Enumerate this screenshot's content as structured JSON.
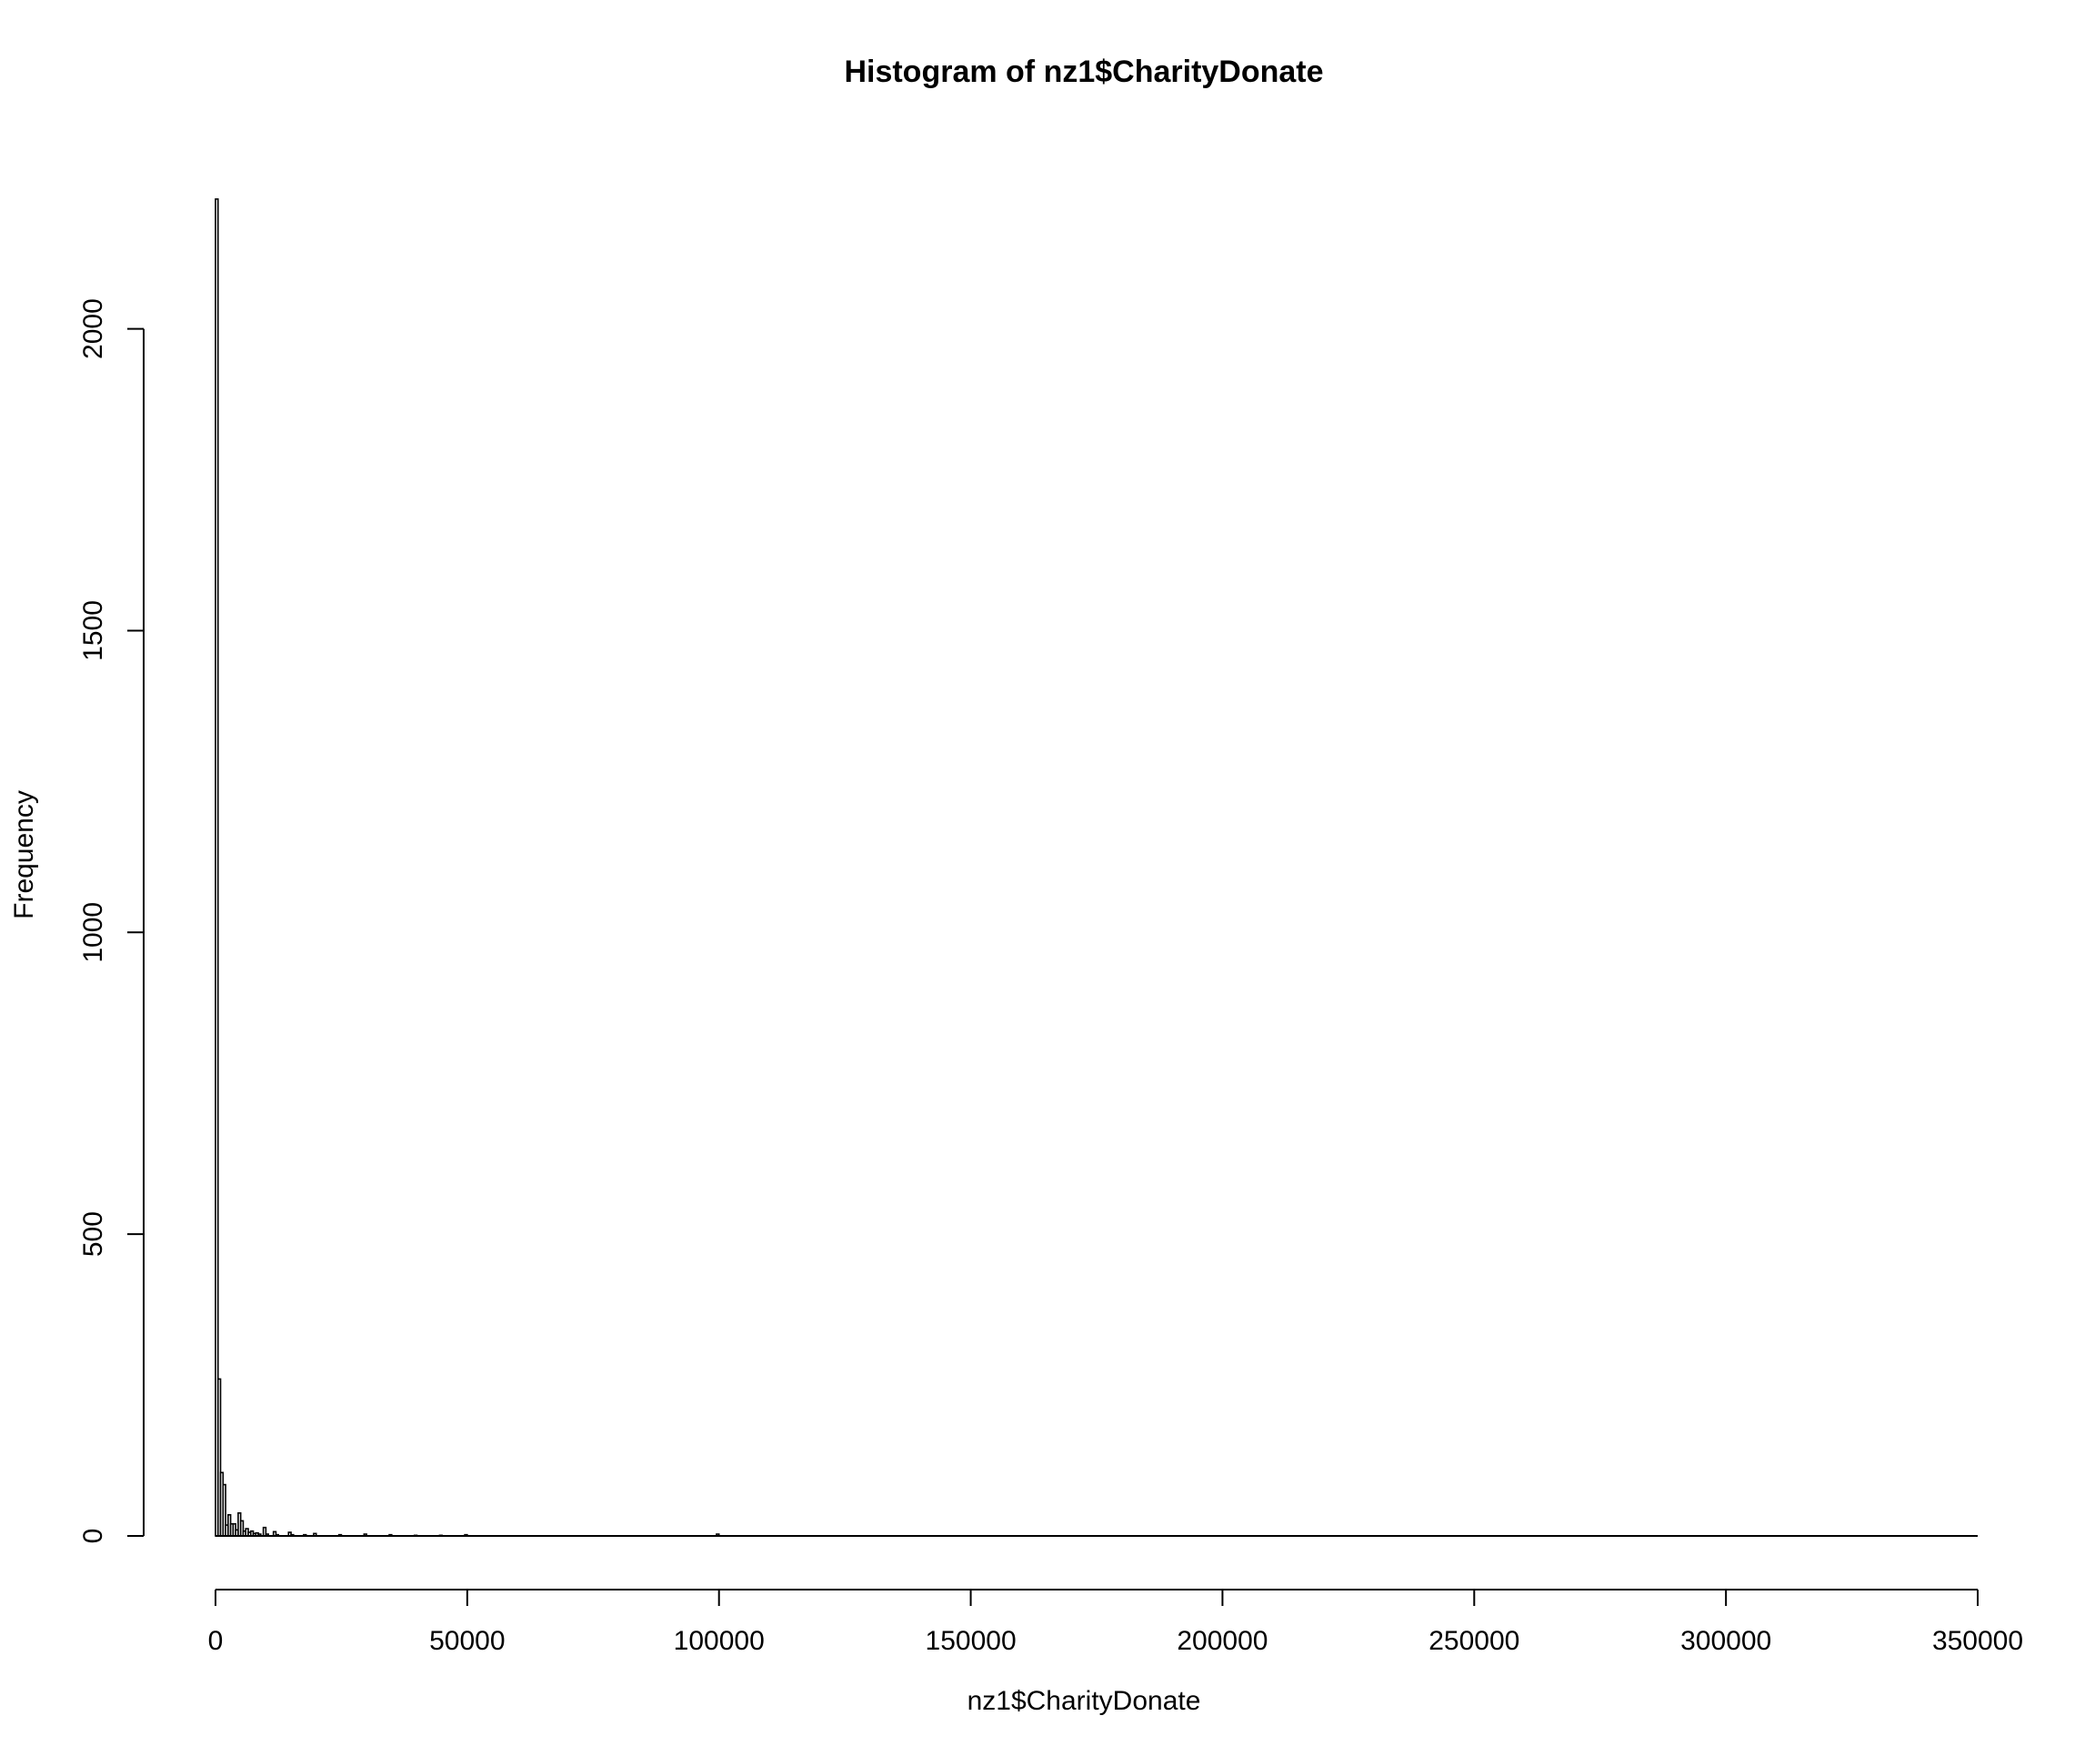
{
  "chart_data": {
    "type": "bar",
    "title": "Histogram of nz1$CharityDonate",
    "xlabel": "nz1$CharityDonate",
    "ylabel": "Frequency",
    "xlim": [
      0,
      350000
    ],
    "ylim": [
      0,
      2220
    ],
    "x_ticks": [
      "0",
      "50000",
      "100000",
      "150000",
      "200000",
      "250000",
      "300000",
      "350000"
    ],
    "y_ticks": [
      "0",
      "500",
      "1000",
      "1500",
      "2000"
    ],
    "bin_width": 500,
    "bins": [
      {
        "x0": 0,
        "x1": 500,
        "count": 2215
      },
      {
        "x0": 500,
        "x1": 1000,
        "count": 260
      },
      {
        "x0": 1000,
        "x1": 1500,
        "count": 105
      },
      {
        "x0": 1500,
        "x1": 2000,
        "count": 85
      },
      {
        "x0": 2000,
        "x1": 2500,
        "count": 18
      },
      {
        "x0": 2500,
        "x1": 3000,
        "count": 35
      },
      {
        "x0": 3000,
        "x1": 3500,
        "count": 20
      },
      {
        "x0": 3500,
        "x1": 4000,
        "count": 20
      },
      {
        "x0": 4000,
        "x1": 4500,
        "count": 10
      },
      {
        "x0": 4500,
        "x1": 5000,
        "count": 38
      },
      {
        "x0": 5000,
        "x1": 5500,
        "count": 25
      },
      {
        "x0": 5500,
        "x1": 6000,
        "count": 8
      },
      {
        "x0": 6000,
        "x1": 6500,
        "count": 12
      },
      {
        "x0": 6500,
        "x1": 7000,
        "count": 6
      },
      {
        "x0": 7000,
        "x1": 7500,
        "count": 8
      },
      {
        "x0": 7500,
        "x1": 8000,
        "count": 4
      },
      {
        "x0": 8000,
        "x1": 8500,
        "count": 5
      },
      {
        "x0": 8500,
        "x1": 9000,
        "count": 3
      },
      {
        "x0": 9500,
        "x1": 10000,
        "count": 14
      },
      {
        "x0": 10000,
        "x1": 10500,
        "count": 3
      },
      {
        "x0": 11500,
        "x1": 12000,
        "count": 7
      },
      {
        "x0": 12000,
        "x1": 12500,
        "count": 2
      },
      {
        "x0": 14500,
        "x1": 15000,
        "count": 6
      },
      {
        "x0": 15000,
        "x1": 15500,
        "count": 2
      },
      {
        "x0": 17500,
        "x1": 18000,
        "count": 2
      },
      {
        "x0": 19500,
        "x1": 20000,
        "count": 4
      },
      {
        "x0": 24500,
        "x1": 25000,
        "count": 2
      },
      {
        "x0": 29500,
        "x1": 30000,
        "count": 3
      },
      {
        "x0": 34500,
        "x1": 35000,
        "count": 2
      },
      {
        "x0": 39500,
        "x1": 40000,
        "count": 1
      },
      {
        "x0": 44500,
        "x1": 45000,
        "count": 1
      },
      {
        "x0": 49500,
        "x1": 50000,
        "count": 2
      },
      {
        "x0": 99500,
        "x1": 100000,
        "count": 3
      }
    ],
    "bar_fill": "#ffffff",
    "bar_stroke": "#000000",
    "grid": false,
    "legend": "none"
  }
}
